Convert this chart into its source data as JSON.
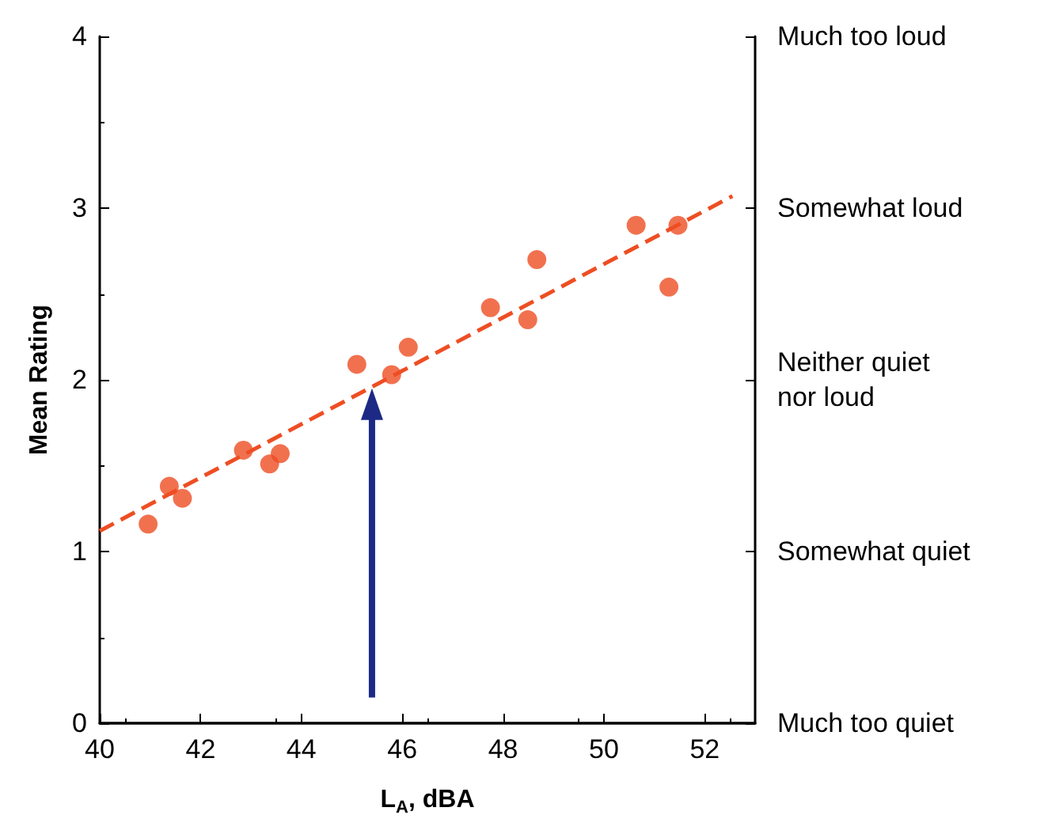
{
  "chart_data": {
    "type": "scatter",
    "xlabel": "L$_{A}$, dBA",
    "ylabel": "Mean Rating",
    "xlim": [
      40,
      53
    ],
    "xticks": [
      40,
      42,
      44,
      46,
      48,
      50,
      52
    ],
    "ylim": [
      0,
      4
    ],
    "yticks": [
      0,
      1,
      2,
      3,
      4
    ],
    "y2_categories": [
      "Much too loud",
      "Somewhat loud",
      "Neither quiet\nnor loud",
      "Somewhat quiet",
      "Much too quiet"
    ],
    "grid": false,
    "marker": "circle",
    "series": [
      {
        "color": "#ee4e23",
        "x": [
          40.96,
          41.38,
          41.64,
          42.85,
          43.37,
          43.58,
          45.1,
          45.79,
          46.12,
          47.75,
          48.49,
          48.67,
          50.64,
          51.29,
          51.47
        ],
        "values": [
          1.16,
          1.38,
          1.31,
          1.59,
          1.51,
          1.57,
          2.09,
          2.03,
          2.19,
          2.42,
          2.35,
          2.7,
          2.9,
          2.54,
          2.9
        ]
      },
      {
        "type": "line",
        "color": "#ee4e23",
        "line_style": "dashed",
        "marker": "none",
        "x": [
          40,
          52.55
        ],
        "values": [
          1.12,
          3.07
        ]
      }
    ]
  }
}
